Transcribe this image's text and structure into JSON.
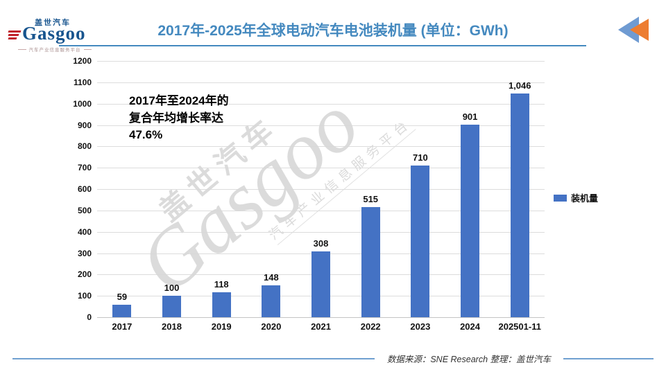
{
  "header": {
    "logo": {
      "cn": "盖世汽车",
      "en": "Gasgoo",
      "tagline": "汽车产业信息服务平台"
    },
    "title": "2017年-2025年全球电动汽车电池装机量 (单位：GWh)"
  },
  "icons": {
    "header_arrow": "double-left-triangles-icon"
  },
  "colors": {
    "accent_blue": "#4489BF",
    "bar_blue": "#4472C4",
    "arrow_blue": "#6F9BD2",
    "arrow_orange": "#ED7D31",
    "logo_blue": "#17548E",
    "logo_red": "#C0222B"
  },
  "annotation": {
    "lines": [
      "2017年至2024年的",
      "复合年均增长率达",
      "47.6%"
    ]
  },
  "legend": {
    "label": "装机量"
  },
  "watermark": {
    "cn": "盖世汽车",
    "en": "Gasgoo",
    "tagline": "汽车产业信息服务平台"
  },
  "footer": {
    "source": "数据来源：SNE Research 整理：盖世汽车"
  },
  "chart_data": {
    "type": "bar",
    "title": "2017年-2025年全球电动汽车电池装机量 (单位：GWh)",
    "categories": [
      "2017",
      "2018",
      "2019",
      "2020",
      "2021",
      "2022",
      "2023",
      "2024",
      "202501-11"
    ],
    "series": [
      {
        "name": "装机量",
        "values": [
          59,
          100,
          118,
          148,
          308,
          515,
          710,
          901,
          1046
        ]
      }
    ],
    "value_labels": [
      "59",
      "100",
      "118",
      "148",
      "308",
      "515",
      "710",
      "901",
      "1,046"
    ],
    "xlabel": "",
    "ylabel": "",
    "ylim": [
      0,
      1200
    ],
    "ytick_step": 100,
    "grid": true,
    "legend_position": "right",
    "bar_color": "#4472C4",
    "annotation": "2017年至2024年的复合年均增长率达47.6%",
    "source": "数据来源：SNE Research 整理：盖世汽车"
  }
}
